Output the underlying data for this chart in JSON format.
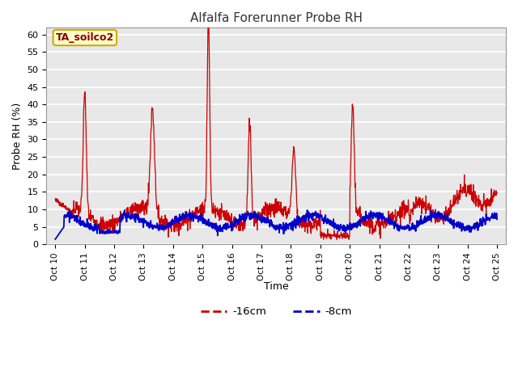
{
  "title": "Alfalfa Forerunner Probe RH",
  "ylabel": "Probe RH (%)",
  "xlabel": "Time",
  "ylim": [
    0,
    62
  ],
  "yticks": [
    0,
    5,
    10,
    15,
    20,
    25,
    30,
    35,
    40,
    45,
    50,
    55,
    60
  ],
  "xtick_labels": [
    "Oct 10",
    "Oct 11",
    "Oct 12",
    "Oct 13",
    "Oct 14",
    "Oct 15",
    "Oct 16",
    "Oct 17",
    "Oct 18",
    "Oct 19",
    "Oct 20",
    "Oct 21",
    "Oct 22",
    "Oct 23",
    "Oct 24",
    "Oct 25"
  ],
  "bg_color": "#e8e8e8",
  "grid_color": "#ffffff",
  "line_red_color": "#cc0000",
  "line_blue_color": "#0000cc",
  "legend_label_red": "-16cm",
  "legend_label_blue": "-8cm",
  "subtitle_box_label": "TA_soilco2",
  "subtitle_box_bg": "#ffffcc",
  "subtitle_box_border": "#ccaa00",
  "subtitle_text_color": "#880000",
  "n_points": 1500,
  "spike_centers": [
    1.0,
    3.3,
    5.2,
    6.6,
    8.1,
    10.1
  ],
  "spike_heights": [
    35,
    30,
    57,
    29,
    20,
    31
  ],
  "spike_sigma": [
    0.05,
    0.07,
    0.04,
    0.05,
    0.06,
    0.05
  ],
  "red_base_amp": 2.5,
  "red_base_period": 2.3,
  "red_noise": 1.2,
  "blue_base": 6.5,
  "blue_amp": 1.8,
  "blue_period": 2.1,
  "blue_noise": 0.6
}
